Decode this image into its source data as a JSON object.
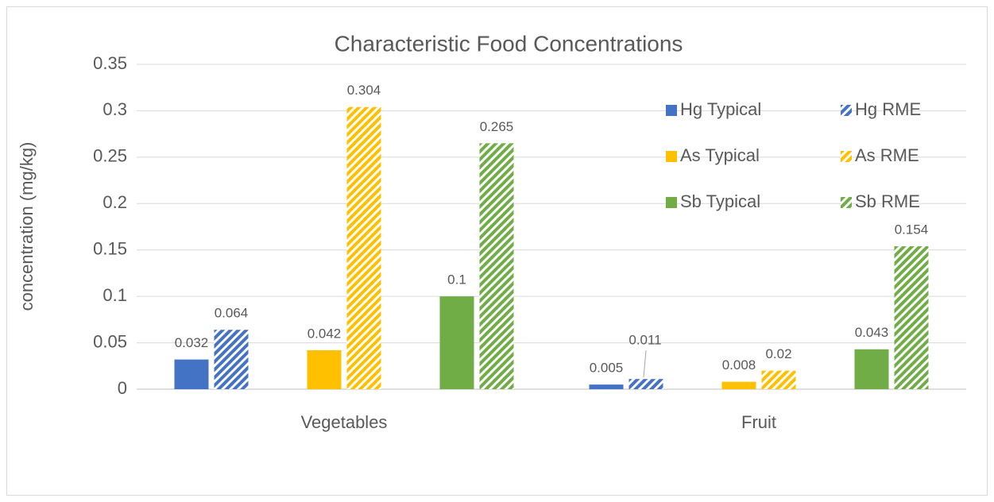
{
  "chart_data": {
    "type": "bar",
    "title": "Characteristic Food Concentrations",
    "y_label": "concentration (mg/kg)",
    "categories": [
      "Vegetables",
      "Fruit"
    ],
    "series": [
      {
        "name": "Hg Typical",
        "color": "#4472c4",
        "hatch": false,
        "values": [
          0.032,
          0.005
        ]
      },
      {
        "name": "Hg RME",
        "color": "#4472c4",
        "hatch": true,
        "values": [
          0.064,
          0.011
        ]
      },
      {
        "name": "As Typical",
        "color": "#ffc000",
        "hatch": false,
        "values": [
          0.042,
          0.008
        ]
      },
      {
        "name": "As RME",
        "color": "#ffc000",
        "hatch": true,
        "values": [
          0.304,
          0.02
        ]
      },
      {
        "name": "Sb Typical",
        "color": "#70ad47",
        "hatch": false,
        "values": [
          0.1,
          0.043
        ]
      },
      {
        "name": "Sb RME",
        "color": "#70ad47",
        "hatch": true,
        "values": [
          0.265,
          0.154
        ]
      }
    ],
    "ylim": [
      0,
      0.35
    ],
    "yticks": [
      0,
      0.05,
      0.1,
      0.15,
      0.2,
      0.25,
      0.3,
      0.35
    ],
    "grid": true,
    "legend": "upper right",
    "data_labels": true
  }
}
